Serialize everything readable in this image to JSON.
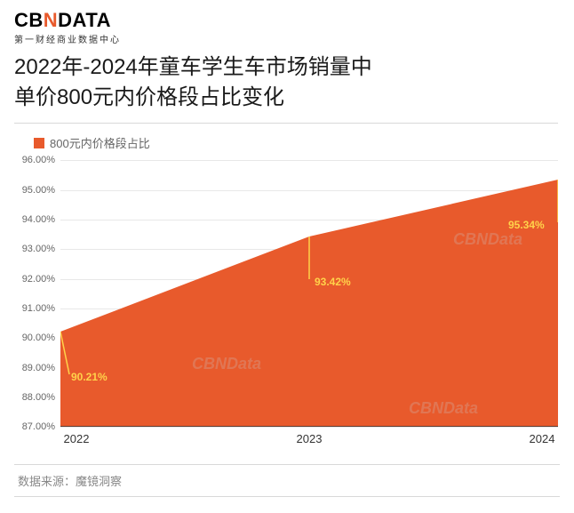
{
  "logo": {
    "main_prefix": "CB",
    "main_orange": "N",
    "main_suffix": "DATA",
    "subtitle": "第一财经商业数据中心"
  },
  "title_line1": "2022年-2024年童车学生车市场销量中",
  "title_line2": "单价800元内价格段占比变化",
  "chart": {
    "type": "area",
    "legend_label": "800元内价格段占比",
    "series_color": "#e85a2c",
    "marker_line_color": "#ffd24a",
    "label_color": "#ffd24a",
    "grid_color": "#e8e8e8",
    "background_color": "#ffffff",
    "categories": [
      "2022",
      "2023",
      "2024"
    ],
    "values": [
      90.21,
      93.42,
      95.34
    ],
    "value_labels": [
      "90.21%",
      "93.42%",
      "95.34%"
    ],
    "ylim": [
      87.0,
      96.0
    ],
    "ytick_step": 1.0,
    "y_tick_labels": [
      "87.00%",
      "88.00%",
      "89.00%",
      "90.00%",
      "91.00%",
      "92.00%",
      "93.00%",
      "94.00%",
      "95.00%",
      "96.00%"
    ],
    "tick_fontsize": 11,
    "x_fontsize": 13,
    "label_fontsize": 12
  },
  "source_label": "数据来源：魔镜洞察",
  "watermark_text": "CBNData"
}
